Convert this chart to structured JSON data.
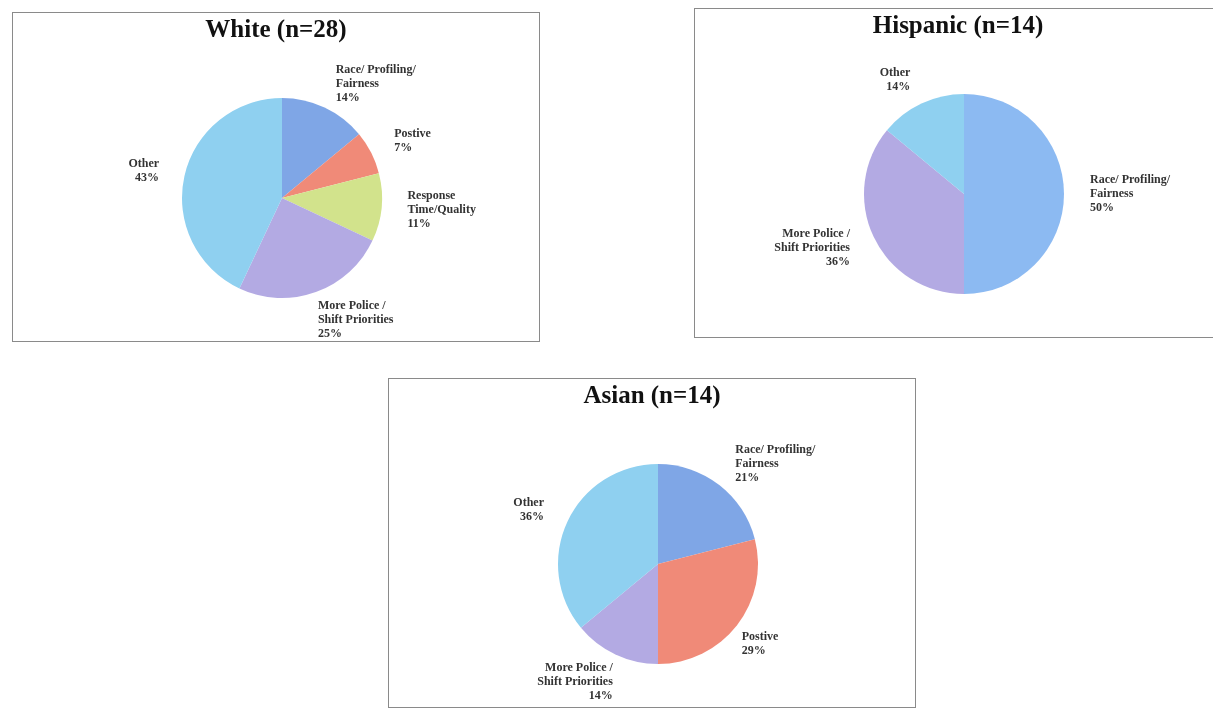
{
  "chart_data": [
    {
      "type": "pie",
      "title": "White (n=28)",
      "categories": [
        "Race/ Profiling/ Fairness",
        "Postive",
        "Response Time/Quality",
        "More Police / Shift Priorities",
        "Other"
      ],
      "values": [
        14,
        7,
        11,
        25,
        43
      ],
      "value_labels": [
        "14%",
        "7%",
        "11%",
        "25%",
        "43%"
      ],
      "colors": [
        "#7fa6e6",
        "#f08a78",
        "#d2e38c",
        "#b3aae3",
        "#8fd0f0"
      ]
    },
    {
      "type": "pie",
      "title": "Hispanic (n=14)",
      "categories": [
        "Race/ Profiling/ Fairness",
        "More Police / Shift Priorities",
        "Other"
      ],
      "values": [
        50,
        36,
        14
      ],
      "value_labels": [
        "50%",
        "36%",
        "14%"
      ],
      "colors": [
        "#8cbaf2",
        "#b3aae3",
        "#8fd0f0"
      ]
    },
    {
      "type": "pie",
      "title": "Asian (n=14)",
      "categories": [
        "Race/ Profiling/ Fairness",
        "Postive",
        "More Police / Shift Priorities",
        "Other"
      ],
      "values": [
        21,
        29,
        14,
        36
      ],
      "value_labels": [
        "21%",
        "29%",
        "14%",
        "36%"
      ],
      "colors": [
        "#7fa6e6",
        "#f08a78",
        "#b3aae3",
        "#8fd0f0"
      ]
    }
  ]
}
